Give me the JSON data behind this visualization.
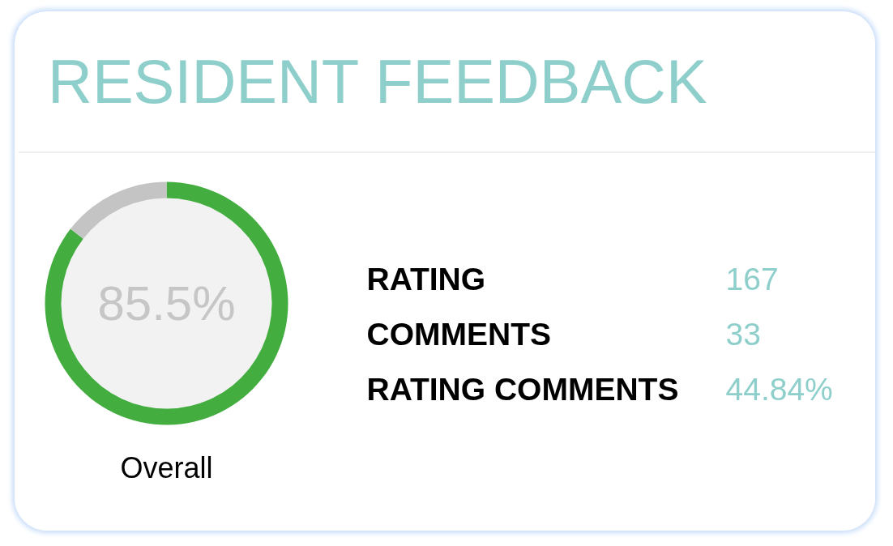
{
  "chart_data": [
    {
      "type": "donut",
      "title": "RESIDENT FEEDBACK",
      "categories": [
        null,
        null
      ],
      "values": [
        85.5,
        14.5
      ],
      "colors": [
        "#43ae3f",
        "#c4c4c4"
      ],
      "value_labels": [
        "85.5%",
        null
      ],
      "xlabel": "Overall"
    },
    {
      "type": "other",
      "categories": [
        "RATING",
        "COMMENTS",
        "RATING COMMENTS"
      ],
      "value_labels": [
        "167",
        "33",
        "44.84%"
      ]
    }
  ]
}
